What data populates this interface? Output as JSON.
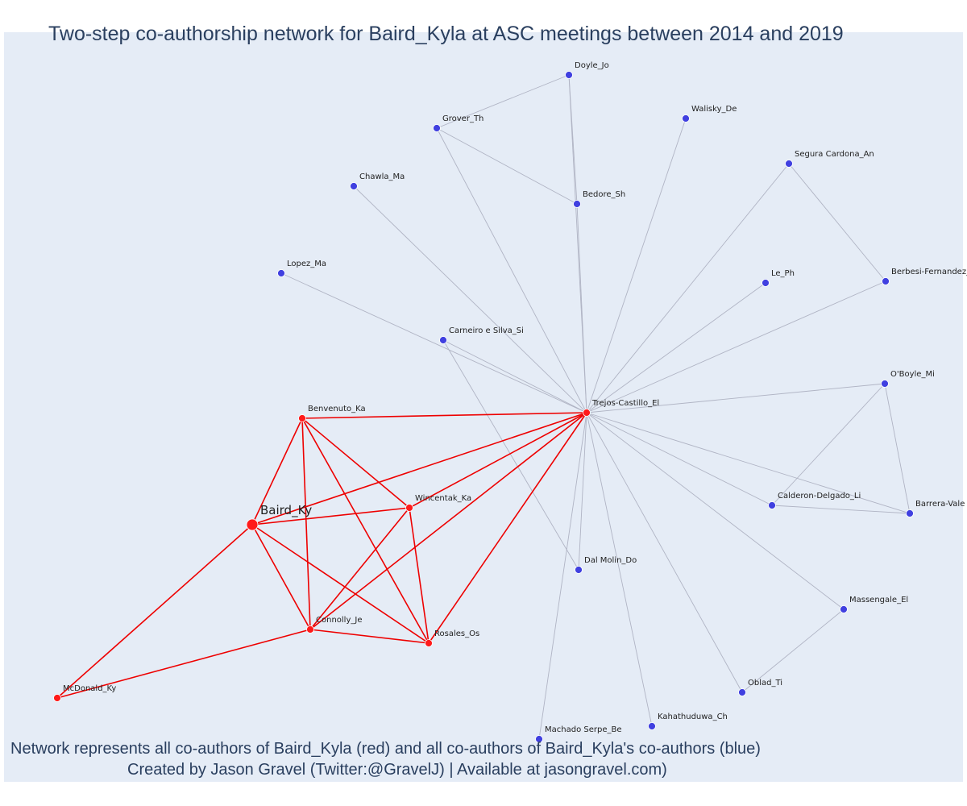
{
  "title": "Two-step co-authorship network for Baird_Kyla at ASC meetings between 2014 and 2019",
  "caption_line1": "Network represents all co-authors of Baird_Kyla (red) and all co-authors of Baird_Kyla's co-authors (blue)",
  "caption_line2": "Created by Jason Gravel (Twitter:@GravelJ) | Available at jasongravel.com)",
  "colors": {
    "background": "#e5ecf6",
    "red_node": "#ff1a1a",
    "red_edge": "#ee0000",
    "blue_node": "#4040e0",
    "grey_edge": "#b0b4c4",
    "text": "#2a3f5f"
  },
  "nodes": [
    {
      "id": "Baird_Ky",
      "group": "red",
      "focal": true
    },
    {
      "id": "Benvenuto_Ka",
      "group": "red"
    },
    {
      "id": "Wincentak_Ka",
      "group": "red"
    },
    {
      "id": "Connolly_Je",
      "group": "red"
    },
    {
      "id": "Rosales_Os",
      "group": "red"
    },
    {
      "id": "McDonald_Ky",
      "group": "red"
    },
    {
      "id": "Trejos-Castillo_El",
      "group": "red"
    },
    {
      "id": "Doyle_Jo",
      "group": "blue"
    },
    {
      "id": "Grover_Th",
      "group": "blue"
    },
    {
      "id": "Walisky_De",
      "group": "blue"
    },
    {
      "id": "Segura Cardona_An",
      "group": "blue"
    },
    {
      "id": "Chawla_Ma",
      "group": "blue"
    },
    {
      "id": "Bedore_Sh",
      "group": "blue"
    },
    {
      "id": "Lopez_Ma",
      "group": "blue"
    },
    {
      "id": "Le_Ph",
      "group": "blue"
    },
    {
      "id": "Berbesi-Fernandez_",
      "group": "blue"
    },
    {
      "id": "Carneiro e Silva_Si",
      "group": "blue"
    },
    {
      "id": "O'Boyle_Mi",
      "group": "blue"
    },
    {
      "id": "Calderon-Delgado_Li",
      "group": "blue"
    },
    {
      "id": "Barrera-Vale",
      "group": "blue"
    },
    {
      "id": "Dal Molin_Do",
      "group": "blue"
    },
    {
      "id": "Massengale_El",
      "group": "blue"
    },
    {
      "id": "Oblad_Ti",
      "group": "blue"
    },
    {
      "id": "Kahathuduwa_Ch",
      "group": "blue"
    },
    {
      "id": "Machado Serpe_Be",
      "group": "blue"
    }
  ],
  "edges": [
    [
      "Baird_Ky",
      "Benvenuto_Ka"
    ],
    [
      "Baird_Ky",
      "Wincentak_Ka"
    ],
    [
      "Baird_Ky",
      "Connolly_Je"
    ],
    [
      "Baird_Ky",
      "Rosales_Os"
    ],
    [
      "Baird_Ky",
      "McDonald_Ky"
    ],
    [
      "Baird_Ky",
      "Trejos-Castillo_El"
    ],
    [
      "Benvenuto_Ka",
      "Wincentak_Ka"
    ],
    [
      "Benvenuto_Ka",
      "Connolly_Je"
    ],
    [
      "Benvenuto_Ka",
      "Rosales_Os"
    ],
    [
      "Benvenuto_Ka",
      "Trejos-Castillo_El"
    ],
    [
      "Wincentak_Ka",
      "Connolly_Je"
    ],
    [
      "Wincentak_Ka",
      "Rosales_Os"
    ],
    [
      "Wincentak_Ka",
      "Trejos-Castillo_El"
    ],
    [
      "Connolly_Je",
      "Rosales_Os"
    ],
    [
      "Connolly_Je",
      "McDonald_Ky"
    ],
    [
      "Connolly_Je",
      "Trejos-Castillo_El"
    ],
    [
      "Rosales_Os",
      "Trejos-Castillo_El"
    ],
    [
      "Trejos-Castillo_El",
      "Grover_Th"
    ],
    [
      "Trejos-Castillo_El",
      "Doyle_Jo"
    ],
    [
      "Trejos-Castillo_El",
      "Bedore_Sh"
    ],
    [
      "Trejos-Castillo_El",
      "Walisky_De"
    ],
    [
      "Trejos-Castillo_El",
      "Segura Cardona_An"
    ],
    [
      "Trejos-Castillo_El",
      "Chawla_Ma"
    ],
    [
      "Trejos-Castillo_El",
      "Lopez_Ma"
    ],
    [
      "Trejos-Castillo_El",
      "Le_Ph"
    ],
    [
      "Trejos-Castillo_El",
      "Berbesi-Fernandez_"
    ],
    [
      "Trejos-Castillo_El",
      "Carneiro e Silva_Si"
    ],
    [
      "Trejos-Castillo_El",
      "O'Boyle_Mi"
    ],
    [
      "Trejos-Castillo_El",
      "Calderon-Delgado_Li"
    ],
    [
      "Trejos-Castillo_El",
      "Barrera-Vale"
    ],
    [
      "Trejos-Castillo_El",
      "Dal Molin_Do"
    ],
    [
      "Trejos-Castillo_El",
      "Massengale_El"
    ],
    [
      "Trejos-Castillo_El",
      "Oblad_Ti"
    ],
    [
      "Trejos-Castillo_El",
      "Kahathuduwa_Ch"
    ],
    [
      "Trejos-Castillo_El",
      "Machado Serpe_Be"
    ],
    [
      "Doyle_Jo",
      "Grover_Th"
    ],
    [
      "Doyle_Jo",
      "Bedore_Sh"
    ],
    [
      "Grover_Th",
      "Bedore_Sh"
    ],
    [
      "Segura Cardona_An",
      "Berbesi-Fernandez_"
    ],
    [
      "O'Boyle_Mi",
      "Calderon-Delgado_Li"
    ],
    [
      "O'Boyle_Mi",
      "Barrera-Vale"
    ],
    [
      "Calderon-Delgado_Li",
      "Barrera-Vale"
    ],
    [
      "Carneiro e Silva_Si",
      "Dal Molin_Do"
    ],
    [
      "Massengale_El",
      "Oblad_Ti"
    ]
  ]
}
